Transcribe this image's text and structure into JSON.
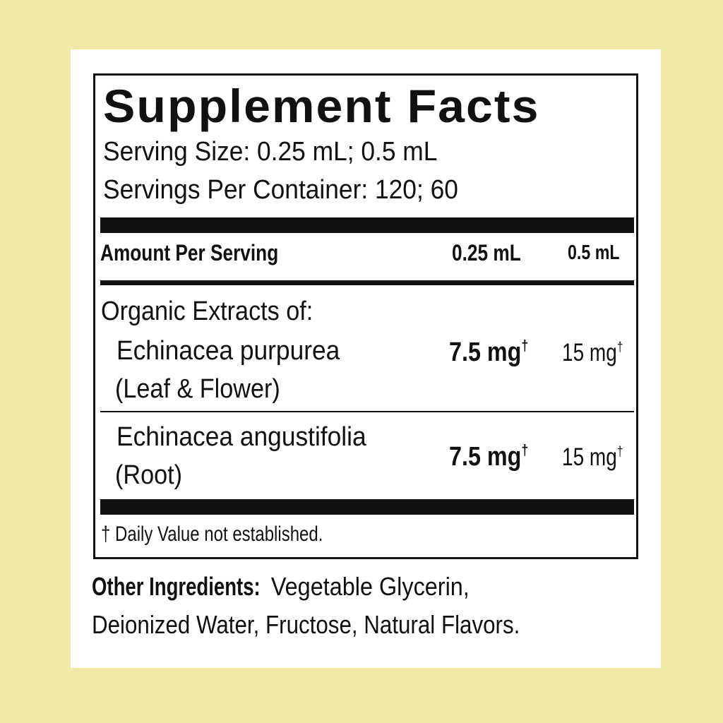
{
  "title": "Supplement Facts",
  "serving_size": "Serving Size: 0.25 mL; 0.5 mL",
  "servings_per_container": "Servings Per Container: 120; 60",
  "header": {
    "amount_label": "Amount Per Serving",
    "col1": "0.25 mL",
    "col2": "0.5 mL"
  },
  "section_label": "Organic Extracts of:",
  "rows": [
    {
      "name": "Echinacea purpurea",
      "part": "(Leaf & Flower)",
      "v1": "7.5 mg",
      "v2": "15 mg",
      "mark": "†"
    },
    {
      "name": "Echinacea angustifolia",
      "part": "(Root)",
      "v1": "7.5 mg",
      "v2": "15 mg",
      "mark": "†"
    }
  ],
  "footnote": "† Daily Value not established.",
  "other_ingredients": {
    "label": "Other Ingredients:",
    "line1": " Vegetable Glycerin,",
    "line2": "Deionized Water, Fructose, Natural Flavors."
  },
  "colors": {
    "background": "#f0eaa8",
    "panel": "#ffffff",
    "ink": "#111111"
  }
}
